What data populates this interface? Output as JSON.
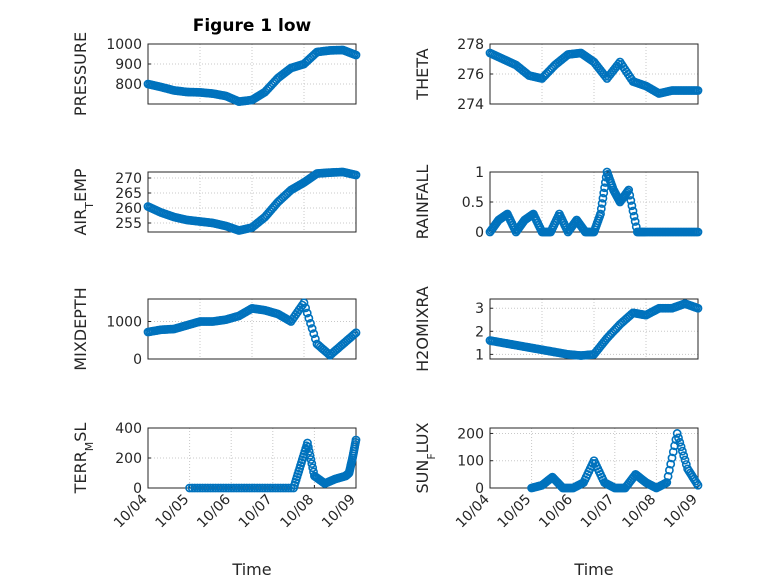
{
  "figure": {
    "title": "Figure 1 low",
    "marker_color": "#0072bd",
    "xlabel": "Time"
  },
  "chart_data": [
    {
      "type": "scatter",
      "ylabel": "PRESSURE",
      "title": "Figure 1 low",
      "xlim": [
        "10/05",
        "10/09"
      ],
      "ylim": [
        700,
        1000
      ],
      "xtick_labels": [],
      "ytick_labels": [
        "800",
        "900",
        "1000"
      ],
      "yticks": [
        800,
        900,
        1000
      ],
      "grid": true,
      "x": [
        "10/05 00:00",
        "10/05 06:00",
        "10/05 12:00",
        "10/05 18:00",
        "10/06 00:00",
        "10/06 06:00",
        "10/06 12:00",
        "10/06 18:00",
        "10/07 00:00",
        "10/07 06:00",
        "10/07 12:00",
        "10/07 18:00",
        "10/08 00:00",
        "10/08 06:00",
        "10/08 12:00",
        "10/08 18:00",
        "10/09 00:00"
      ],
      "y": [
        800,
        785,
        768,
        760,
        758,
        752,
        740,
        712,
        720,
        760,
        830,
        880,
        900,
        960,
        968,
        970,
        945
      ]
    },
    {
      "type": "scatter",
      "ylabel": "THETA",
      "xlim": [
        "10/05",
        "10/09"
      ],
      "ylim": [
        274,
        278
      ],
      "xtick_labels": [],
      "ytick_labels": [
        "274",
        "276",
        "278"
      ],
      "yticks": [
        274,
        276,
        278
      ],
      "grid": true,
      "x": [
        "10/05 00:00",
        "10/05 06:00",
        "10/05 12:00",
        "10/05 18:00",
        "10/06 00:00",
        "10/06 06:00",
        "10/06 12:00",
        "10/06 18:00",
        "10/07 00:00",
        "10/07 06:00",
        "10/07 12:00",
        "10/07 18:00",
        "10/08 00:00",
        "10/08 06:00",
        "10/08 12:00",
        "10/08 18:00",
        "10/09 00:00"
      ],
      "y": [
        277.4,
        277.0,
        276.6,
        275.9,
        275.7,
        276.6,
        277.3,
        277.4,
        276.8,
        275.7,
        276.8,
        275.5,
        275.2,
        274.7,
        274.9,
        274.9,
        274.9
      ]
    },
    {
      "type": "scatter",
      "ylabel": "AIR_TEMP",
      "ylabel_parts": [
        "AIR",
        "T",
        "EMP"
      ],
      "xlim": [
        "10/05",
        "10/09"
      ],
      "ylim": [
        252,
        272
      ],
      "xtick_labels": [],
      "ytick_labels": [
        "255",
        "260",
        "265",
        "270"
      ],
      "yticks": [
        255,
        260,
        265,
        270
      ],
      "grid": true,
      "x": [
        "10/05 00:00",
        "10/05 06:00",
        "10/05 12:00",
        "10/05 18:00",
        "10/06 00:00",
        "10/06 06:00",
        "10/06 12:00",
        "10/06 18:00",
        "10/07 00:00",
        "10/07 06:00",
        "10/07 12:00",
        "10/07 18:00",
        "10/08 00:00",
        "10/08 06:00",
        "10/08 12:00",
        "10/08 18:00",
        "10/09 00:00"
      ],
      "y": [
        260.5,
        258.5,
        257.0,
        256.0,
        255.5,
        255.0,
        254.0,
        252.5,
        253.5,
        257.0,
        262.0,
        266.0,
        268.5,
        271.5,
        271.8,
        272.0,
        271.0
      ]
    },
    {
      "type": "scatter",
      "ylabel": "RAINFALL",
      "xlim": [
        "10/05",
        "10/09"
      ],
      "ylim": [
        0,
        1
      ],
      "xtick_labels": [],
      "ytick_labels": [
        "0",
        "0.5",
        "1"
      ],
      "yticks": [
        0,
        0.5,
        1
      ],
      "grid": true,
      "x": [
        "10/05 00:00",
        "10/05 04:00",
        "10/05 08:00",
        "10/05 12:00",
        "10/05 16:00",
        "10/05 20:00",
        "10/06 00:00",
        "10/06 04:00",
        "10/06 08:00",
        "10/06 12:00",
        "10/06 16:00",
        "10/06 20:00",
        "10/07 00:00",
        "10/07 03:00",
        "10/07 06:00",
        "10/07 09:00",
        "10/07 12:00",
        "10/07 16:00",
        "10/07 20:00",
        "10/08 00:00",
        "10/08 06:00",
        "10/08 12:00",
        "10/08 18:00",
        "10/09 00:00"
      ],
      "y": [
        0.0,
        0.2,
        0.3,
        0.0,
        0.2,
        0.3,
        0.0,
        0.0,
        0.3,
        0.0,
        0.2,
        0.0,
        0.0,
        0.3,
        1.0,
        0.7,
        0.5,
        0.7,
        0.0,
        0.0,
        0.0,
        0.0,
        0.0,
        0.0
      ]
    },
    {
      "type": "scatter",
      "ylabel": "MIXDEPTH",
      "xlim": [
        "10/05",
        "10/09"
      ],
      "ylim": [
        0,
        1600
      ],
      "xtick_labels": [],
      "ytick_labels": [
        "0",
        "1000"
      ],
      "yticks": [
        0,
        1000
      ],
      "grid": true,
      "x": [
        "10/05 00:00",
        "10/05 06:00",
        "10/05 12:00",
        "10/05 18:00",
        "10/06 00:00",
        "10/06 06:00",
        "10/06 12:00",
        "10/06 18:00",
        "10/07 00:00",
        "10/07 06:00",
        "10/07 12:00",
        "10/07 18:00",
        "10/08 00:00",
        "10/08 06:00",
        "10/08 12:00",
        "10/08 18:00",
        "10/09 00:00"
      ],
      "y": [
        720,
        780,
        800,
        900,
        1000,
        1000,
        1050,
        1150,
        1350,
        1300,
        1200,
        1000,
        1500,
        400,
        100,
        400,
        700
      ]
    },
    {
      "type": "scatter",
      "ylabel": "H2OMIXRA",
      "xlim": [
        "10/05",
        "10/09"
      ],
      "ylim": [
        0.8,
        3.4
      ],
      "xtick_labels": [],
      "ytick_labels": [
        "1",
        "2",
        "3"
      ],
      "yticks": [
        1,
        2,
        3
      ],
      "grid": true,
      "x": [
        "10/05 00:00",
        "10/05 06:00",
        "10/05 12:00",
        "10/05 18:00",
        "10/06 00:00",
        "10/06 06:00",
        "10/06 12:00",
        "10/06 18:00",
        "10/07 00:00",
        "10/07 06:00",
        "10/07 12:00",
        "10/07 18:00",
        "10/08 00:00",
        "10/08 06:00",
        "10/08 12:00",
        "10/08 18:00",
        "10/09 00:00"
      ],
      "y": [
        1.6,
        1.5,
        1.4,
        1.3,
        1.2,
        1.1,
        1.0,
        0.95,
        1.0,
        1.7,
        2.3,
        2.8,
        2.7,
        3.0,
        3.0,
        3.2,
        3.0
      ]
    },
    {
      "type": "scatter",
      "ylabel": "TERR_MSL",
      "ylabel_parts": [
        "TERR",
        "M",
        "SL"
      ],
      "xlim": [
        "10/04",
        "10/09"
      ],
      "ylim": [
        0,
        400
      ],
      "xtick_labels": [
        "10/04",
        "10/05",
        "10/06",
        "10/07",
        "10/08",
        "10/09"
      ],
      "ytick_labels": [
        "0",
        "200",
        "400"
      ],
      "yticks": [
        0,
        200,
        400
      ],
      "grid": true,
      "x": [
        "10/05 00:00",
        "10/05 12:00",
        "10/06 00:00",
        "10/06 12:00",
        "10/07 00:00",
        "10/07 12:00",
        "10/07 16:00",
        "10/07 20:00",
        "10/08 00:00",
        "10/08 06:00",
        "10/08 12:00",
        "10/08 18:00",
        "10/08 20:00",
        "10/08 22:00",
        "10/09 00:00"
      ],
      "y": [
        0,
        0,
        0,
        0,
        0,
        0,
        150,
        300,
        80,
        30,
        60,
        80,
        100,
        200,
        320
      ]
    },
    {
      "type": "scatter",
      "ylabel": "SUN_FLUX",
      "ylabel_parts": [
        "SUN",
        "F",
        "LUX"
      ],
      "xlim": [
        "10/04",
        "10/09"
      ],
      "ylim": [
        0,
        220
      ],
      "xtick_labels": [
        "10/04",
        "10/05",
        "10/06",
        "10/07",
        "10/08",
        "10/09"
      ],
      "ytick_labels": [
        "0",
        "100",
        "200"
      ],
      "yticks": [
        0,
        100,
        200
      ],
      "grid": true,
      "x": [
        "10/05 00:00",
        "10/05 06:00",
        "10/05 12:00",
        "10/05 18:00",
        "10/06 00:00",
        "10/06 06:00",
        "10/06 12:00",
        "10/06 18:00",
        "10/07 00:00",
        "10/07 06:00",
        "10/07 12:00",
        "10/07 18:00",
        "10/08 00:00",
        "10/08 06:00",
        "10/08 12:00",
        "10/08 18:00",
        "10/09 00:00"
      ],
      "y": [
        0,
        10,
        40,
        0,
        0,
        20,
        100,
        20,
        0,
        0,
        50,
        20,
        0,
        20,
        200,
        70,
        10
      ]
    }
  ]
}
